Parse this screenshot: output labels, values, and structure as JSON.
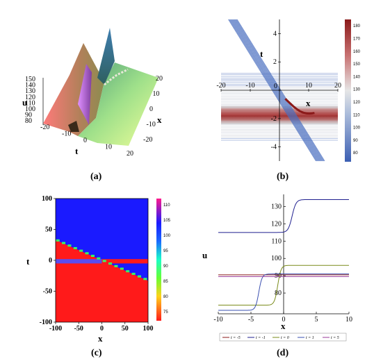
{
  "panels": [
    {
      "id": "a",
      "caption": "(a)",
      "type": "surface3d",
      "u_ticks": [
        "150",
        "140",
        "130",
        "120",
        "110",
        "100",
        "90",
        "80"
      ],
      "u_label": "u",
      "x_ticks": [
        "-20",
        "-10",
        "0",
        "10",
        "20"
      ],
      "x_label": "x",
      "t_ticks": [
        "-20",
        "-10",
        "0",
        "10",
        "20"
      ],
      "t_label": "t"
    },
    {
      "id": "b",
      "caption": "(b)",
      "type": "contour",
      "x_label": "x",
      "y_label": "t",
      "x_ticks": [
        -20,
        -10,
        0,
        10,
        20
      ],
      "y_ticks": [
        -4,
        -2,
        0,
        2,
        4
      ],
      "xlim": [
        -20,
        20
      ],
      "ylim": [
        -5,
        5
      ],
      "colorbar_ticks": [
        80,
        90,
        100,
        110,
        120,
        130,
        140,
        150,
        160,
        170,
        180
      ],
      "colorbar_range": [
        73,
        185
      ],
      "colors": {
        "low": "#3b5fb3",
        "mid": "#e6e6e6",
        "high": "#8b1a1a"
      }
    },
    {
      "id": "c",
      "caption": "(c)",
      "type": "heatmap",
      "x_label": "x",
      "y_label": "t",
      "x_ticks": [
        -100,
        -50,
        0,
        50,
        100
      ],
      "y_ticks": [
        -100,
        -50,
        0,
        50,
        100
      ],
      "xlim": [
        -100,
        100
      ],
      "ylim": [
        -100,
        100
      ],
      "colorbar_ticks": [
        75,
        80,
        85,
        90,
        95,
        100,
        105,
        110
      ],
      "colorbar_range": [
        72,
        112
      ],
      "colors": {
        "blue": "#1a1aff",
        "red": "#ff1a1a",
        "green": "#33ff66",
        "mid": "#5a4cf0"
      }
    },
    {
      "id": "d",
      "caption": "(d)",
      "type": "line",
      "x_label": "x",
      "y_label": "u",
      "xlim": [
        -10,
        10
      ],
      "ylim": [
        68,
        137
      ],
      "x_ticks": [
        -10,
        -5,
        0,
        5,
        10
      ],
      "y_ticks": [
        80,
        90,
        100,
        110,
        120,
        130
      ],
      "series": [
        {
          "name": "t = -5",
          "color": "#8b1a1a",
          "lo": 90.5,
          "hi": 90.5,
          "center": 0,
          "w": 0.3
        },
        {
          "name": "t = -1",
          "color": "#1f1f8f",
          "lo": 115,
          "hi": 134,
          "center": 1.3,
          "w": 0.3
        },
        {
          "name": "t = 0",
          "color": "#7a8b1a",
          "lo": 73,
          "hi": 96,
          "center": -0.9,
          "w": 0.25
        },
        {
          "name": "t = 1",
          "color": "#3a4fb0",
          "lo": 70,
          "hi": 91,
          "center": -3.8,
          "w": 0.25
        },
        {
          "name": "t = 5",
          "color": "#9a3a9a",
          "lo": 89.5,
          "hi": 89.5,
          "center": 0,
          "w": 0.3
        }
      ]
    }
  ]
}
